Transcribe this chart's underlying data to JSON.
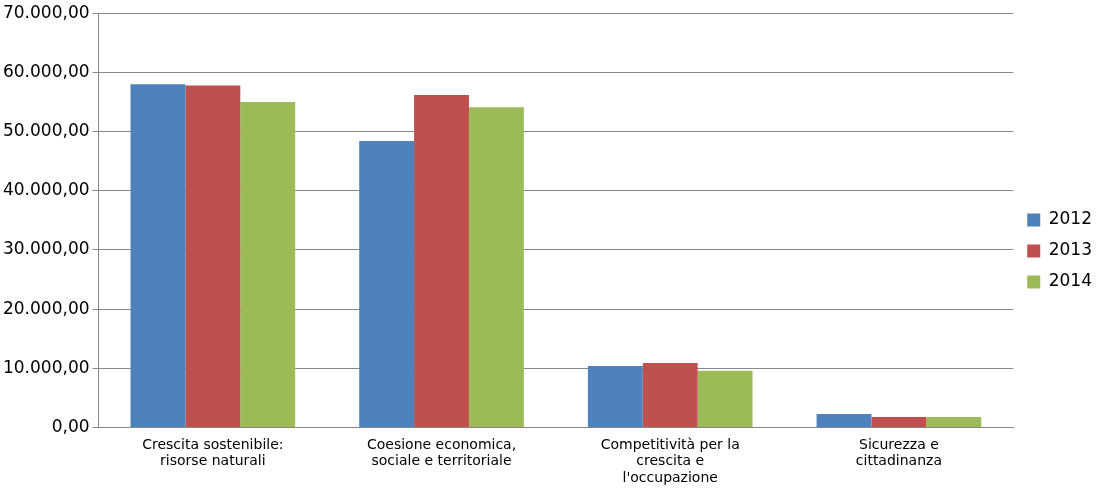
{
  "chart_data": {
    "type": "bar",
    "categories": [
      "Crescita sostenibile: risorse naturali",
      "Coesione economica, sociale e territoriale",
      "Competitività per la crescita e l'occupazione",
      "Sicurezza e cittadinanza"
    ],
    "series": [
      {
        "name": "2012",
        "color": "#4f81bd",
        "values": [
          58000,
          48400,
          10400,
          2300
        ]
      },
      {
        "name": "2013",
        "color": "#c0504d",
        "values": [
          57800,
          56200,
          10900,
          1800
        ]
      },
      {
        "name": "2014",
        "color": "#9bbb59",
        "values": [
          55000,
          54100,
          9600,
          1800
        ]
      }
    ],
    "ylim": [
      0,
      70000
    ],
    "yticks": [
      {
        "value": 0,
        "label": "0,00"
      },
      {
        "value": 10000,
        "label": "10.000,00"
      },
      {
        "value": 20000,
        "label": "20.000,00"
      },
      {
        "value": 30000,
        "label": "30.000,00"
      },
      {
        "value": 40000,
        "label": "40.000,00"
      },
      {
        "value": 50000,
        "label": "50.000,00"
      },
      {
        "value": 60000,
        "label": "60.000,00"
      },
      {
        "value": 70000,
        "label": "70.000,00"
      }
    ],
    "grid": "y",
    "legend": "right"
  }
}
